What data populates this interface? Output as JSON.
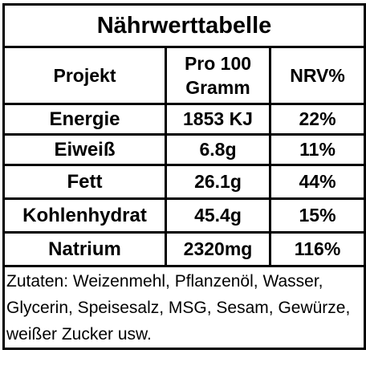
{
  "table": {
    "title": "Nährwerttabelle",
    "header": [
      "Projekt",
      "Pro 100 Gramm",
      "NRV%"
    ],
    "rows": [
      [
        "Energie",
        "1853 KJ",
        "22%"
      ],
      [
        "Eiweiß",
        "6.8g",
        "11%"
      ],
      [
        "Fett",
        "26.1g",
        "44%"
      ],
      [
        "Kohlenhydrat",
        "45.4g",
        "15%"
      ],
      [
        "Natrium",
        "2320mg",
        "116%"
      ]
    ],
    "ingredients": "Zutaten: Weizenmehl, Pflanzenöl, Wasser, Glycerin, Speisesalz, MSG, Sesam, Gewürze, weißer Zucker usw."
  }
}
